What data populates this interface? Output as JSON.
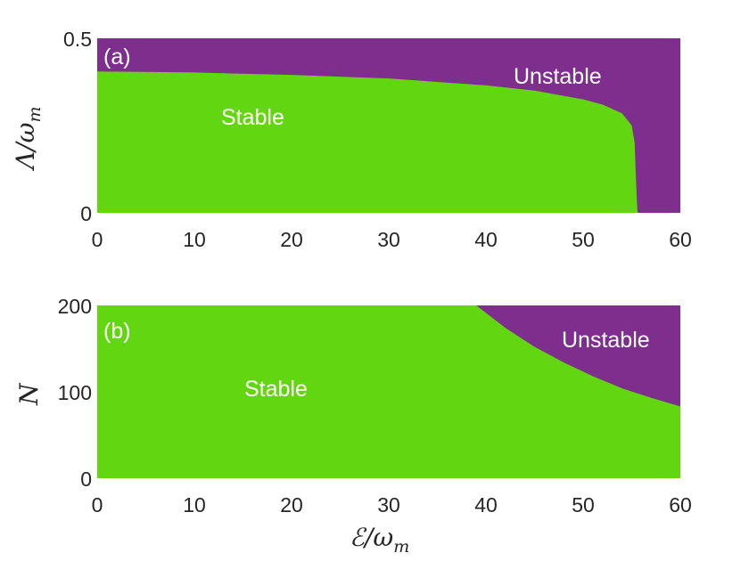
{
  "colors": {
    "stable": "#63d612",
    "unstable": "#7e2f8e",
    "text": "#262626",
    "label_text": "#ffffff"
  },
  "chart_data": [
    {
      "type": "area",
      "panel_label": "(a)",
      "xlabel": "",
      "ylabel": "Λ/ω_m",
      "ylabel_parts": {
        "main": "Λ/ω",
        "sub": "m"
      },
      "xlim": [
        0,
        60
      ],
      "ylim": [
        0,
        0.5
      ],
      "xticks": [
        0,
        10,
        20,
        30,
        40,
        50,
        60
      ],
      "xtick_labels": [
        "0",
        "10",
        "20",
        "30",
        "40",
        "50",
        "60"
      ],
      "yticks": [
        0,
        0.5
      ],
      "ytick_labels": [
        "0",
        "0.5"
      ],
      "regions": [
        "Stable",
        "Unstable"
      ],
      "boundary": {
        "description_values": "upper edge of Stable region",
        "x": [
          0,
          10,
          20,
          30,
          40,
          45,
          50,
          52,
          54,
          55,
          55.3,
          55.4,
          55.5,
          55.6
        ],
        "y": [
          0.405,
          0.402,
          0.395,
          0.385,
          0.365,
          0.35,
          0.325,
          0.31,
          0.285,
          0.25,
          0.2,
          0.12,
          0.05,
          0.0
        ]
      },
      "labels": {
        "stable": "Stable",
        "unstable": "Unstable"
      }
    },
    {
      "type": "area",
      "panel_label": "(b)",
      "xlabel": "ℰ/ω_m",
      "xlabel_parts": {
        "main": "ℰ/ω",
        "sub": "m"
      },
      "ylabel": "N",
      "xlim": [
        0,
        60
      ],
      "ylim": [
        0,
        200
      ],
      "xticks": [
        0,
        10,
        20,
        30,
        40,
        50,
        60
      ],
      "xtick_labels": [
        "0",
        "10",
        "20",
        "30",
        "40",
        "50",
        "60"
      ],
      "yticks": [
        0,
        100,
        200
      ],
      "ytick_labels": [
        "0",
        "100",
        "200"
      ],
      "regions": [
        "Stable",
        "Unstable"
      ],
      "boundary": {
        "description_values": "lower edge of Unstable region",
        "x": [
          39,
          42,
          45,
          48,
          51,
          54,
          57,
          60
        ],
        "y": [
          200,
          174,
          152,
          134,
          118,
          104,
          93,
          83
        ]
      },
      "labels": {
        "stable": "Stable",
        "unstable": "Unstable"
      }
    }
  ]
}
